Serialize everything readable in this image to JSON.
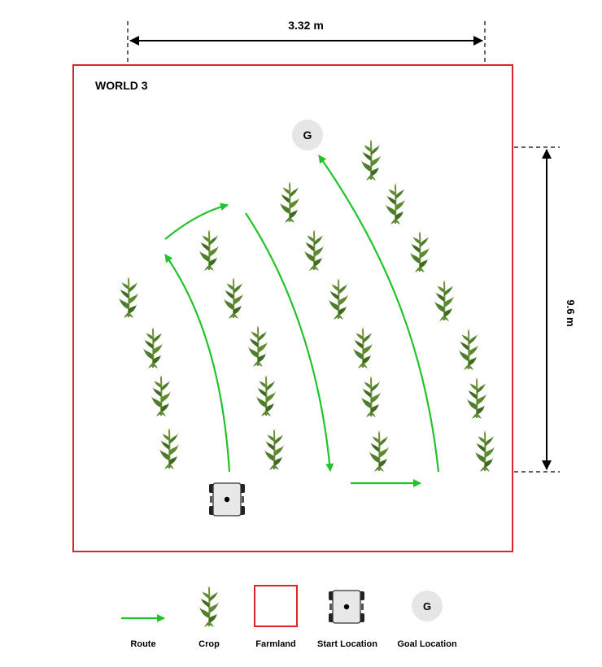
{
  "diagram": {
    "title": "WORLD 3",
    "width_dimension": "3.32 m",
    "height_dimension": "9.6 m",
    "goal_marker": "G"
  },
  "legend": {
    "route": "Route",
    "crop": "Crop",
    "farmland": "Farmland",
    "start": "Start Location",
    "goal": "Goal Location",
    "goal_symbol": "G"
  },
  "colors": {
    "farmland_border": "#d9262b",
    "route": "#22c22a",
    "goal_fill": "#e6e6e6",
    "robot_body": "#e8e8e8",
    "crop_leaf": "#4f7d2c"
  },
  "icons": {
    "crop": "corn-plant-icon",
    "start": "robot-icon",
    "goal": "goal-circle-icon"
  }
}
